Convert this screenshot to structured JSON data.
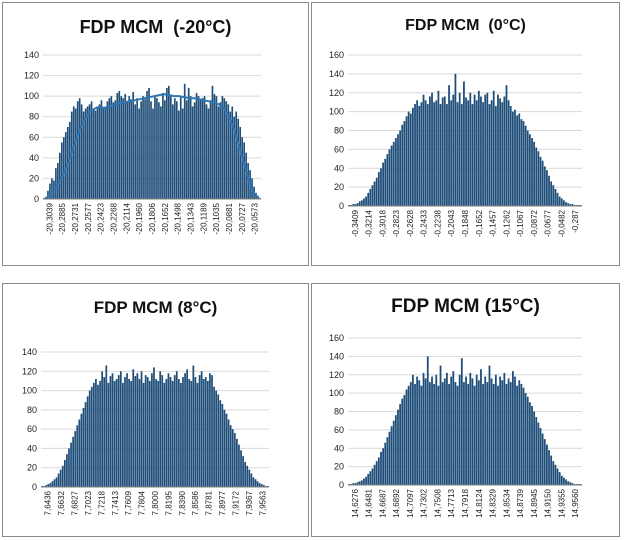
{
  "chart_data": [
    {
      "type": "bar",
      "title": "FDP MCM  (-20°C)",
      "ylim": [
        0,
        140
      ],
      "yticks": [
        0,
        20,
        40,
        60,
        80,
        100,
        120,
        140
      ],
      "xticks": [
        "-20,3039",
        "-20,2885",
        "-20,2731",
        "-20,2577",
        "-20,2423",
        "-20,2268",
        "-20,2114",
        "-20,1960",
        "-20,1806",
        "-20,1652",
        "-20,1498",
        "-20,1343",
        "-20,1189",
        "-20,1035",
        "-20,0881",
        "-20,0727",
        "-20,0573"
      ],
      "bar_color": "#1f4e79",
      "line_color": "#2e75b6",
      "grid": true,
      "values": [
        1,
        2,
        8,
        15,
        20,
        18,
        30,
        35,
        45,
        55,
        60,
        65,
        70,
        75,
        85,
        90,
        88,
        95,
        98,
        92,
        85,
        88,
        90,
        92,
        95,
        88,
        86,
        90,
        92,
        96,
        88,
        90,
        95,
        98,
        100,
        94,
        96,
        103,
        105,
        100,
        98,
        102,
        95,
        100,
        97,
        104,
        92,
        98,
        88,
        95,
        100,
        97,
        105,
        108,
        95,
        88,
        100,
        98,
        94,
        90,
        103,
        96,
        108,
        110,
        100,
        92,
        98,
        95,
        86,
        100,
        88,
        112,
        96,
        108,
        100,
        90,
        94,
        103,
        100,
        96,
        98,
        100,
        92,
        88,
        96,
        110,
        102,
        100,
        90,
        94,
        100,
        98,
        95,
        92,
        85,
        90,
        80,
        85,
        78,
        70,
        60,
        55,
        45,
        35,
        28,
        20,
        12,
        6,
        3,
        1
      ],
      "trend": [
        1,
        3,
        10,
        18,
        28,
        40,
        55,
        68,
        78,
        85,
        88,
        90,
        88,
        90,
        92,
        93,
        94,
        95,
        96,
        97,
        98,
        99,
        100,
        101,
        102,
        101,
        100,
        100,
        99,
        98,
        98,
        97,
        96,
        95,
        94,
        92,
        88,
        80,
        68,
        52,
        35,
        18,
        6,
        1
      ]
    },
    {
      "type": "bar",
      "title": "FDP MCM  (0°C)",
      "ylim": [
        0,
        160
      ],
      "yticks": [
        0,
        20,
        40,
        60,
        80,
        100,
        120,
        140,
        160
      ],
      "xticks": [
        "-0,3409",
        "-0,3214",
        "-0,3018",
        "-0,2823",
        "-0,2628",
        "-0,2433",
        "-0,2238",
        "-0,2043",
        "-0,1848",
        "-0,1652",
        "-0,1457",
        "-0,1262",
        "-0,1067",
        "-0,0872",
        "-0,0677",
        "-0,0482",
        "-0,287"
      ],
      "bar_color": "#1f4e79",
      "grid": true,
      "values": [
        1,
        1,
        2,
        2,
        3,
        5,
        6,
        8,
        10,
        14,
        18,
        22,
        26,
        30,
        36,
        40,
        46,
        50,
        55,
        60,
        64,
        68,
        72,
        76,
        80,
        86,
        90,
        95,
        100,
        98,
        104,
        108,
        112,
        106,
        110,
        118,
        112,
        108,
        116,
        120,
        110,
        112,
        122,
        108,
        115,
        116,
        108,
        128,
        112,
        118,
        140,
        110,
        120,
        108,
        132,
        115,
        112,
        120,
        108,
        118,
        112,
        122,
        116,
        110,
        118,
        120,
        108,
        112,
        122,
        106,
        118,
        114,
        110,
        116,
        128,
        112,
        106,
        100,
        102,
        96,
        98,
        92,
        90,
        85,
        80,
        76,
        72,
        68,
        62,
        58,
        52,
        48,
        42,
        38,
        32,
        26,
        22,
        18,
        14,
        10,
        8,
        6,
        4,
        3,
        2,
        2,
        1,
        1,
        1,
        1
      ],
      "trend": []
    },
    {
      "type": "bar",
      "title": "FDP MCM (8°C)",
      "ylim": [
        0,
        140
      ],
      "yticks": [
        0,
        20,
        40,
        60,
        80,
        100,
        120,
        140
      ],
      "xticks": [
        "7,6436",
        "7,6632",
        "7,6827",
        "7,7023",
        "7,7218",
        "7,7413",
        "7,7609",
        "7,7804",
        "7,8000",
        "7,8195",
        "7,8390",
        "7,8586",
        "7,8781",
        "7,8977",
        "7,9172",
        "7,9367",
        "7,9563"
      ],
      "bar_color": "#1f4e79",
      "grid": true,
      "values": [
        1,
        1,
        2,
        3,
        4,
        6,
        8,
        10,
        14,
        18,
        22,
        28,
        34,
        40,
        46,
        52,
        58,
        64,
        70,
        76,
        82,
        88,
        94,
        100,
        104,
        108,
        112,
        106,
        110,
        120,
        114,
        126,
        108,
        115,
        118,
        110,
        112,
        116,
        120,
        108,
        114,
        118,
        112,
        110,
        122,
        115,
        118,
        112,
        120,
        108,
        116,
        114,
        110,
        118,
        124,
        112,
        110,
        120,
        116,
        108,
        112,
        118,
        114,
        110,
        116,
        120,
        112,
        108,
        114,
        118,
        122,
        112,
        110,
        126,
        114,
        108,
        116,
        120,
        112,
        114,
        110,
        118,
        116,
        104,
        100,
        96,
        90,
        86,
        80,
        76,
        70,
        64,
        60,
        56,
        50,
        44,
        38,
        32,
        26,
        22,
        18,
        14,
        10,
        8,
        6,
        4,
        3,
        2,
        1,
        1
      ],
      "trend": []
    },
    {
      "type": "bar",
      "title": "FDP MCM (15°C)",
      "ylim": [
        0,
        160
      ],
      "yticks": [
        0,
        20,
        40,
        60,
        80,
        100,
        120,
        140,
        160
      ],
      "xticks": [
        "14,6276",
        "14,6481",
        "14,6687",
        "14,6892",
        "14,7097",
        "14,7302",
        "14,7508",
        "14,7713",
        "14,7918",
        "14,8124",
        "14,8329",
        "14,8534",
        "14,8739",
        "14,8945",
        "14,9150",
        "14,9355",
        "14,9560"
      ],
      "bar_color": "#1f4e79",
      "grid": true,
      "values": [
        1,
        1,
        2,
        2,
        3,
        4,
        5,
        7,
        9,
        12,
        15,
        18,
        22,
        26,
        30,
        36,
        40,
        46,
        52,
        58,
        64,
        70,
        76,
        82,
        88,
        94,
        98,
        104,
        108,
        112,
        120,
        110,
        118,
        114,
        108,
        122,
        116,
        140,
        112,
        118,
        110,
        120,
        108,
        130,
        112,
        116,
        122,
        110,
        118,
        124,
        112,
        108,
        120,
        138,
        112,
        118,
        110,
        122,
        116,
        108,
        120,
        114,
        126,
        110,
        118,
        112,
        130,
        116,
        110,
        120,
        108,
        118,
        114,
        122,
        110,
        116,
        112,
        124,
        118,
        108,
        114,
        110,
        106,
        100,
        96,
        90,
        86,
        80,
        74,
        68,
        62,
        56,
        50,
        44,
        38,
        32,
        26,
        22,
        18,
        14,
        10,
        8,
        6,
        4,
        3,
        2,
        1,
        1,
        1,
        1
      ],
      "trend": []
    }
  ]
}
